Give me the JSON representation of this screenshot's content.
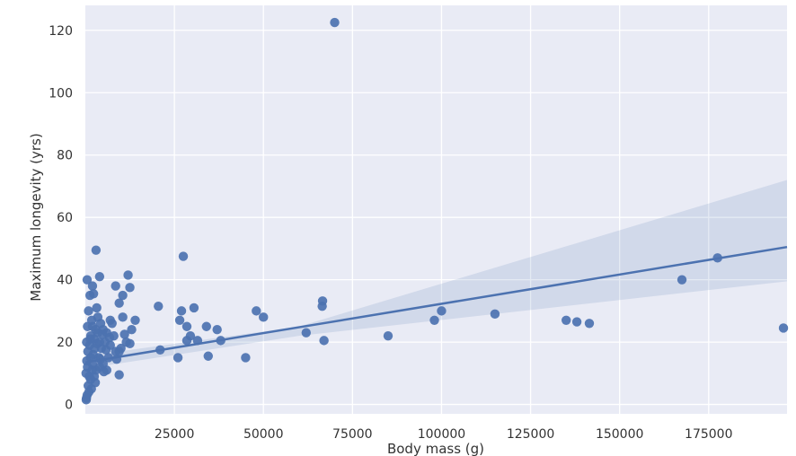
{
  "chart_data": {
    "type": "scatter",
    "title": "",
    "xlabel": "Body mass (g)",
    "ylabel": "Maximum longevity (yrs)",
    "xlim": [
      0,
      197000
    ],
    "ylim": [
      -3,
      128
    ],
    "x_ticks": [
      25000,
      50000,
      75000,
      100000,
      125000,
      150000,
      175000
    ],
    "y_ticks": [
      0,
      20,
      40,
      60,
      80,
      100,
      120
    ],
    "grid": true,
    "legend": "none",
    "style": {
      "plot_background": "#e9ebf5",
      "grid_color": "#ffffff",
      "point_color": "#4c72b0",
      "line_color": "#4c72b0",
      "band_color": "#4c72b0"
    },
    "regression": {
      "x": [
        0,
        197000
      ],
      "y": [
        13.5,
        50.5
      ],
      "ci_lower": [
        11.5,
        39.5
      ],
      "ci_upper": [
        15.5,
        72.0
      ],
      "ci_mid_x": 60000,
      "ci_mid_lower": 22.0,
      "ci_mid_upper": 25.0
    },
    "points": [
      [
        70000,
        122.5
      ],
      [
        3000,
        49.5
      ],
      [
        27500,
        47.5
      ],
      [
        177500,
        47
      ],
      [
        167500,
        40
      ],
      [
        4000,
        41
      ],
      [
        12000,
        41.5
      ],
      [
        500,
        40
      ],
      [
        2000,
        38
      ],
      [
        8500,
        38
      ],
      [
        12500,
        37.5
      ],
      [
        2300,
        35.5
      ],
      [
        10500,
        35
      ],
      [
        9500,
        32.5
      ],
      [
        3200,
        31
      ],
      [
        20500,
        31.5
      ],
      [
        27000,
        30
      ],
      [
        30500,
        31
      ],
      [
        48000,
        30
      ],
      [
        50000,
        28
      ],
      [
        66500,
        31.5
      ],
      [
        66600,
        33.2
      ],
      [
        100000,
        30
      ],
      [
        115000,
        29
      ],
      [
        98000,
        27
      ],
      [
        135000,
        27
      ],
      [
        138000,
        26.5
      ],
      [
        141500,
        26
      ],
      [
        196000,
        24.5
      ],
      [
        14000,
        27
      ],
      [
        26500,
        27
      ],
      [
        28500,
        25
      ],
      [
        34000,
        25
      ],
      [
        37000,
        24
      ],
      [
        62000,
        23
      ],
      [
        10500,
        28
      ],
      [
        7000,
        27
      ],
      [
        3500,
        28
      ],
      [
        6000,
        23
      ],
      [
        5000,
        24
      ],
      [
        2000,
        25
      ],
      [
        1500,
        22
      ],
      [
        4000,
        20
      ],
      [
        4500,
        18
      ],
      [
        8000,
        22
      ],
      [
        7000,
        19
      ],
      [
        11000,
        22.5
      ],
      [
        12500,
        19.5
      ],
      [
        10000,
        18
      ],
      [
        8500,
        17
      ],
      [
        9500,
        17
      ],
      [
        6500,
        15
      ],
      [
        5000,
        13
      ],
      [
        4000,
        12
      ],
      [
        3000,
        11
      ],
      [
        2500,
        9
      ],
      [
        2800,
        7
      ],
      [
        1500,
        8
      ],
      [
        800,
        6
      ],
      [
        1000,
        4
      ],
      [
        500,
        3
      ],
      [
        300,
        2
      ],
      [
        1500,
        15
      ],
      [
        2000,
        13
      ],
      [
        700,
        17
      ],
      [
        1200,
        19
      ],
      [
        2500,
        21
      ],
      [
        3500,
        23
      ],
      [
        6000,
        11
      ],
      [
        9500,
        9.5
      ],
      [
        21000,
        17.5
      ],
      [
        26000,
        15
      ],
      [
        28500,
        20.5
      ],
      [
        29500,
        22
      ],
      [
        31500,
        20.5
      ],
      [
        34500,
        15.5
      ],
      [
        38000,
        20.5
      ],
      [
        45000,
        15
      ],
      [
        67000,
        20.5
      ],
      [
        85000,
        22
      ],
      [
        200,
        10
      ],
      [
        400,
        14
      ],
      [
        600,
        25
      ],
      [
        900,
        30
      ],
      [
        1300,
        35
      ],
      [
        1800,
        27
      ],
      [
        5500,
        20
      ],
      [
        7500,
        26
      ],
      [
        11500,
        20
      ],
      [
        13000,
        24
      ],
      [
        600,
        12
      ],
      [
        1100,
        9
      ],
      [
        2200,
        16
      ],
      [
        3800,
        15
      ],
      [
        4800,
        22.5
      ],
      [
        5800,
        17.5
      ],
      [
        8800,
        14.5
      ],
      [
        1700,
        5
      ],
      [
        250,
        1.5
      ],
      [
        350,
        20
      ],
      [
        2900,
        24
      ],
      [
        4300,
        26
      ],
      [
        2600,
        18
      ],
      [
        1900,
        11
      ],
      [
        1400,
        21
      ],
      [
        3300,
        19.5
      ],
      [
        6800,
        21.5
      ],
      [
        4200,
        14.5
      ],
      [
        5200,
        10.5
      ]
    ]
  }
}
